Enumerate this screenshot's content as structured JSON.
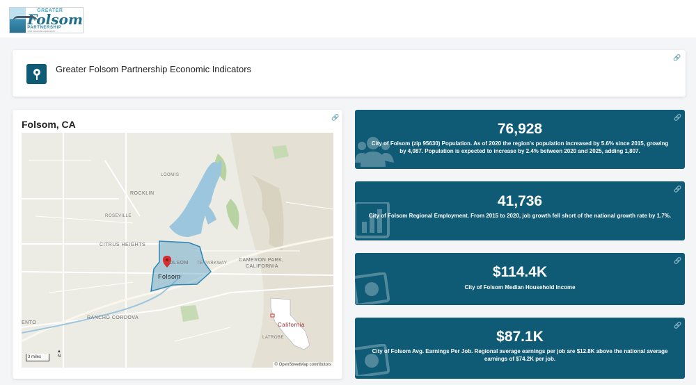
{
  "logo": {
    "greater": "GREATER",
    "folsom": "Folsom",
    "partnership": "PARTNERSHIP",
    "tagline": "VISIT FOLSOM COMMUNITY"
  },
  "header": {
    "title": "Greater Folsom Partnership Economic Indicators",
    "icon": "map-pin-icon"
  },
  "map_card": {
    "title": "Folsom, CA",
    "labels": {
      "loomis": "LOOMIS",
      "rocklin": "ROCKLIN",
      "roseville": "ROSEVILLE",
      "citrus_heights": "CITRUS HEIGHTS",
      "folsom_area": "OLSOM",
      "folsom": "Folsom",
      "parkway": "TE PARKWAY",
      "cameron_park": "CAMERON PARK,",
      "california_caps": "CALIFORNIA",
      "rancho_cordova": "RANCHO CORDOVA",
      "ento": "ENTO",
      "latrobe": "LATROBE",
      "california_inset": "California"
    },
    "scale": "3 miles",
    "north": "N",
    "attribution": "© OpenStreetMap contributors"
  },
  "stats": [
    {
      "value": "76,928",
      "description": "City of Folsom (zip 95630) Population. As of 2020 the region's population increased by 5.6% since 2015, growing by 4,087. Population is expected to increase by 2.4% between 2020 and 2025, adding 1,807.",
      "icon": "people-icon"
    },
    {
      "value": "41,736",
      "description": "City of Folsom Regional Employment. From 2015 to 2020, job growth fell short of the national growth rate by 1.7%.",
      "icon": "chart-icon"
    },
    {
      "value": "$114.4K",
      "description": "City of Folsom Median Household Income",
      "icon": "money-icon"
    },
    {
      "value": "$87.1K",
      "description": "City of Folsom Avg. Earnings Per Job. Regional average earnings per job are $12.8K above the national average earnings of $74.2K per job.",
      "icon": "money-icon"
    }
  ],
  "colors": {
    "accent": "#0f5a75",
    "background": "#f4f5f7",
    "lake": "#9cc5de",
    "boundary": "#2f86b5",
    "marker": "#d32f2f"
  }
}
